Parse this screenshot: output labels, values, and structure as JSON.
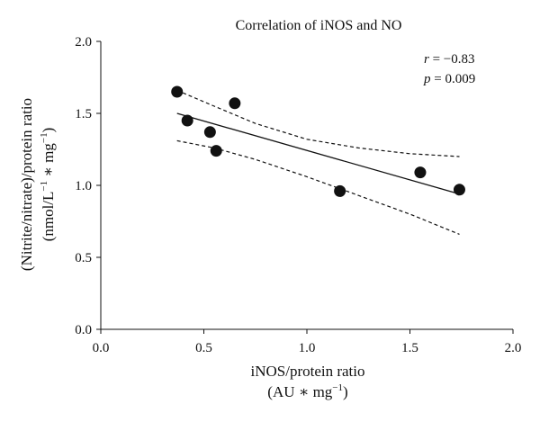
{
  "chart_data": {
    "type": "scatter",
    "title": "Correlation of iNOS and NO",
    "xlabel": {
      "line1": "iNOS/protein ratio",
      "line2_prefix": "(AU ∗ mg",
      "line2_sup": "−1",
      "line2_suffix": ")"
    },
    "ylabel": {
      "line1": "(Nitrite/nitrate)/protein ratio",
      "line2_prefix": "(nmol/L",
      "line2_sup1": "−1",
      "line2_mid": " ∗ mg",
      "line2_sup2": "−1",
      "line2_suffix": ")"
    },
    "xlim": [
      0,
      2
    ],
    "ylim": [
      0,
      2
    ],
    "xticks": [
      "0.0",
      "0.5",
      "1.0",
      "1.5",
      "2.0"
    ],
    "yticks": [
      "0.0",
      "0.5",
      "1.0",
      "1.5",
      "2.0"
    ],
    "grid": false,
    "points": [
      {
        "x": 0.37,
        "y": 1.65
      },
      {
        "x": 0.42,
        "y": 1.45
      },
      {
        "x": 0.53,
        "y": 1.37
      },
      {
        "x": 0.56,
        "y": 1.24
      },
      {
        "x": 0.65,
        "y": 1.57
      },
      {
        "x": 1.16,
        "y": 0.96
      },
      {
        "x": 1.55,
        "y": 1.09
      },
      {
        "x": 1.74,
        "y": 0.97
      }
    ],
    "fit_line": [
      {
        "x": 0.37,
        "y": 1.5
      },
      {
        "x": 1.74,
        "y": 0.94
      }
    ],
    "ci_upper": [
      {
        "x": 0.37,
        "y": 1.66
      },
      {
        "x": 0.55,
        "y": 1.55
      },
      {
        "x": 0.75,
        "y": 1.43
      },
      {
        "x": 1.0,
        "y": 1.32
      },
      {
        "x": 1.25,
        "y": 1.26
      },
      {
        "x": 1.5,
        "y": 1.22
      },
      {
        "x": 1.74,
        "y": 1.2
      }
    ],
    "ci_lower": [
      {
        "x": 0.37,
        "y": 1.31
      },
      {
        "x": 0.55,
        "y": 1.26
      },
      {
        "x": 0.75,
        "y": 1.18
      },
      {
        "x": 1.0,
        "y": 1.06
      },
      {
        "x": 1.25,
        "y": 0.93
      },
      {
        "x": 1.5,
        "y": 0.8
      },
      {
        "x": 1.74,
        "y": 0.66
      }
    ],
    "stats": {
      "r_symbol": "r",
      "r_value": " = −0.83",
      "p_symbol": "p",
      "p_value": " = 0.009"
    }
  }
}
